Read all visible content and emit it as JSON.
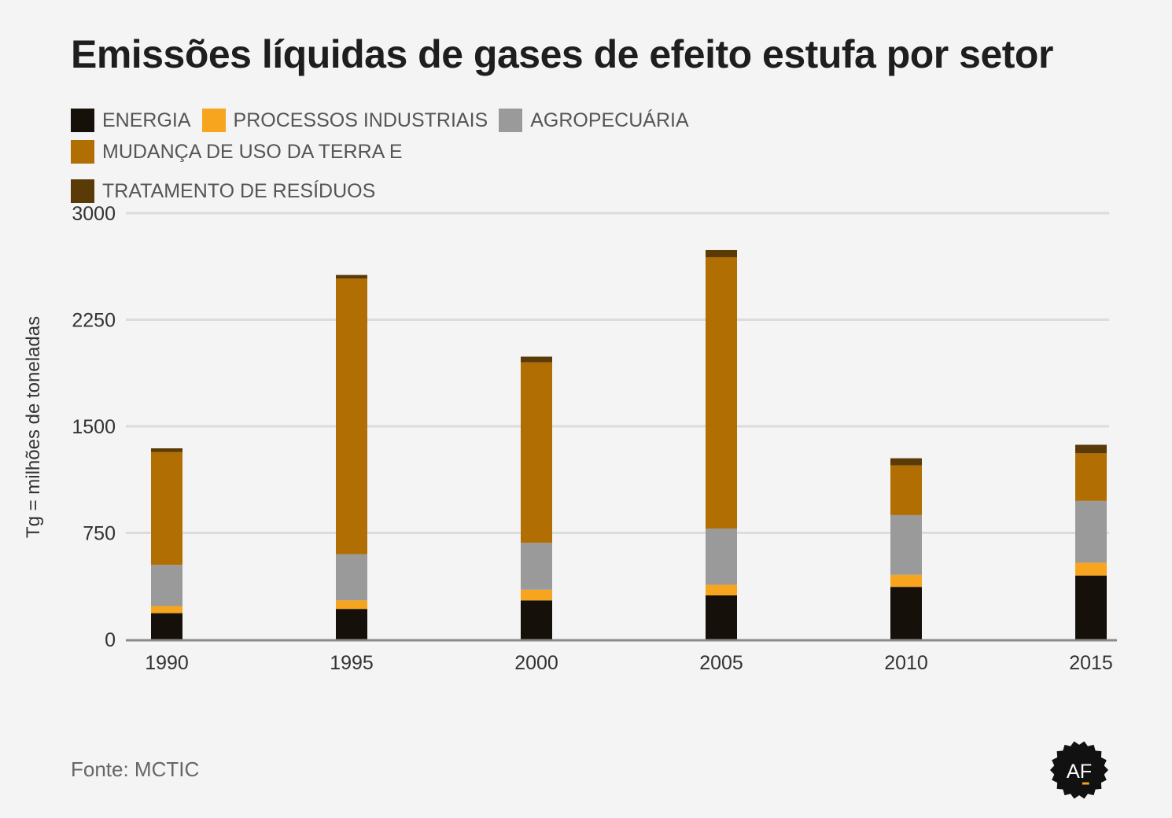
{
  "chart_data": {
    "type": "bar",
    "stacked": true,
    "title": "Emissões líquidas de gases de efeito estufa por setor",
    "ylabel": "Tg = milhões de toneladas",
    "xlabel": "",
    "ylim": [
      0,
      3000
    ],
    "yticks": [
      0,
      750,
      1500,
      2250,
      3000
    ],
    "grid": true,
    "legend_position": "top",
    "categories": [
      "1990",
      "1995",
      "2000",
      "2005",
      "2010",
      "2015"
    ],
    "series": [
      {
        "name": "ENERGIA",
        "color": "#16100a",
        "values": [
          185,
          215,
          275,
          310,
          370,
          450
        ]
      },
      {
        "name": "PROCESSOS INDUSTRIAIS",
        "color": "#f7a51f",
        "values": [
          50,
          60,
          75,
          75,
          85,
          90
        ]
      },
      {
        "name": "AGROPECUÁRIA",
        "color": "#9a9a9a",
        "values": [
          290,
          325,
          330,
          395,
          420,
          435
        ]
      },
      {
        "name": "MUDANÇA DE USO DA TERRA E",
        "color": "#b06e03",
        "values": [
          795,
          1940,
          1270,
          1910,
          350,
          335
        ]
      },
      {
        "name": "TRATAMENTO DE RESÍDUOS",
        "color": "#5a3a06",
        "values": [
          25,
          25,
          40,
          50,
          50,
          60
        ]
      }
    ]
  },
  "source": "Fonte: MCTIC",
  "logo": {
    "text": "AF",
    "icon": "af-badge-icon"
  }
}
